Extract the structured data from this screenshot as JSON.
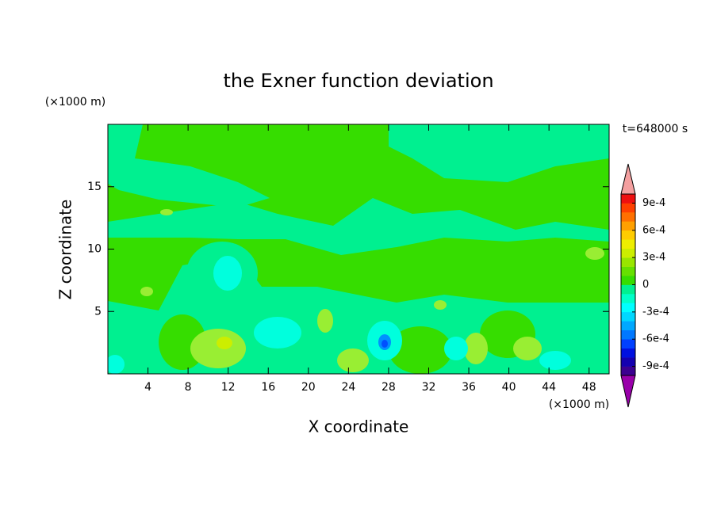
{
  "chart_data": {
    "type": "contour",
    "title": "the Exner function deviation",
    "xlabel": "X coordinate",
    "ylabel": "Z coordinate",
    "x_unit": "(×1000 m)",
    "y_unit": "(×1000 m)",
    "annotation": "t=648000 s",
    "xlim": [
      0,
      50
    ],
    "xticks": [
      4,
      8,
      12,
      16,
      20,
      24,
      28,
      32,
      36,
      40,
      44,
      48
    ],
    "ylim": [
      0,
      20
    ],
    "yticks": [
      5,
      10,
      15
    ],
    "colorbar": {
      "clim": [
        -0.001,
        0.001
      ],
      "colors": [
        "#3c0090",
        "#1400b0",
        "#0010e0",
        "#0040ff",
        "#0078ff",
        "#00a8ff",
        "#00d8ff",
        "#00ffff",
        "#00ffc8",
        "#00f090",
        "#36dd00",
        "#66e000",
        "#99e600",
        "#ccee00",
        "#eeee00",
        "#ffcc00",
        "#ffa000",
        "#ff7000",
        "#ff4000",
        "#ee1010"
      ],
      "under_color": "#9900aa",
      "over_color": "#f4a0a0",
      "ticks": [
        {
          "value": -0.0009,
          "label": "-9e-4"
        },
        {
          "value": -0.0006,
          "label": "-6e-4"
        },
        {
          "value": -0.0003,
          "label": "-3e-4"
        },
        0,
        {
          "value": 0.0003,
          "label": "3e-4"
        },
        {
          "value": 0.0006,
          "label": "6e-4"
        },
        {
          "value": 0.0009,
          "label": "9e-4"
        }
      ]
    }
  }
}
